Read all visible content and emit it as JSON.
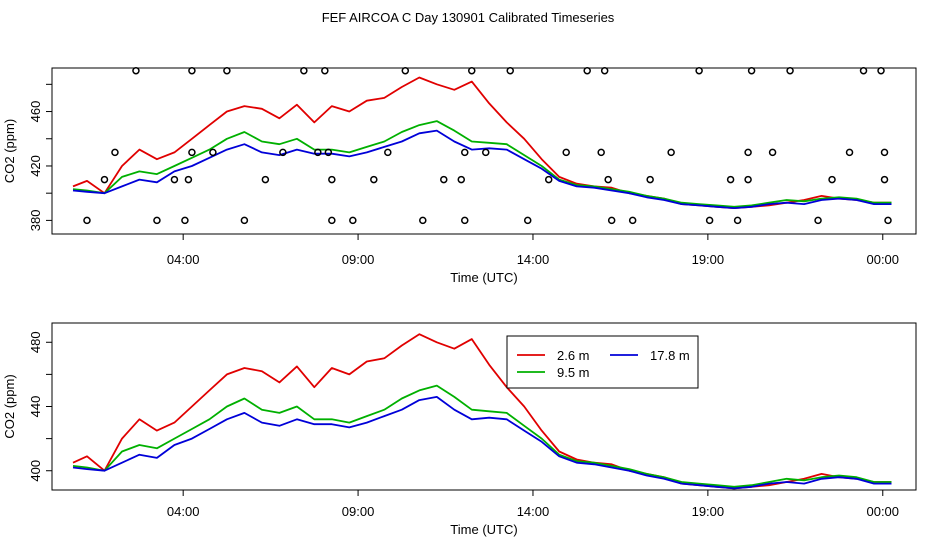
{
  "title": "FEF AIRCOA C  Day 130901  Calibrated Timeseries",
  "colors": {
    "s1": "#e00000",
    "s2": "#00b000",
    "s3": "#0000d8"
  },
  "chart_data": [
    {
      "type": "line",
      "xlabel": "Time (UTC)",
      "ylabel": "CO2 (ppm)",
      "xlim": [
        0,
        24.7
      ],
      "ylim": [
        370,
        492
      ],
      "xticks": [
        3.75,
        8.75,
        13.75,
        18.75,
        23.75
      ],
      "xtick_labels": [
        "04:00",
        "09:00",
        "14:00",
        "19:00",
        "00:00"
      ],
      "yticks": [
        380,
        420,
        460
      ],
      "yticks_minor": [
        400,
        440,
        480
      ],
      "x": [
        0.6,
        1.0,
        1.5,
        2.0,
        2.5,
        3.0,
        3.5,
        4.0,
        4.5,
        5.0,
        5.5,
        6.0,
        6.5,
        7.0,
        7.5,
        8.0,
        8.5,
        9.0,
        9.5,
        10.0,
        10.5,
        11.0,
        11.5,
        12.0,
        12.5,
        13.0,
        13.5,
        14.0,
        14.5,
        15.0,
        15.5,
        16.0,
        16.5,
        17.0,
        17.5,
        18.0,
        18.5,
        19.0,
        19.5,
        20.0,
        20.5,
        21.0,
        21.5,
        22.0,
        22.5,
        23.0,
        23.5,
        24.0
      ],
      "series": [
        {
          "name": "2.6 m",
          "color_key": "s1",
          "values": [
            405,
            409,
            400,
            420,
            432,
            425,
            430,
            440,
            450,
            460,
            464,
            462,
            455,
            465,
            452,
            464,
            460,
            468,
            470,
            478,
            485,
            480,
            476,
            482,
            466,
            452,
            440,
            425,
            412,
            407,
            405,
            404,
            400,
            398,
            396,
            392,
            391,
            390,
            389,
            390,
            391,
            393,
            395,
            398,
            396,
            395,
            393,
            393
          ]
        },
        {
          "name": "9.5 m",
          "color_key": "s2",
          "values": [
            403,
            402,
            400,
            412,
            416,
            414,
            420,
            426,
            432,
            440,
            445,
            438,
            436,
            440,
            432,
            432,
            430,
            434,
            438,
            445,
            450,
            453,
            446,
            438,
            437,
            436,
            428,
            420,
            410,
            406,
            405,
            403,
            401,
            398,
            396,
            393,
            392,
            391,
            390,
            391,
            393,
            395,
            394,
            396,
            397,
            396,
            393,
            393
          ]
        },
        {
          "name": "17.8 m",
          "color_key": "s3",
          "values": [
            402,
            401,
            400,
            405,
            410,
            408,
            416,
            420,
            426,
            432,
            436,
            430,
            428,
            432,
            429,
            429,
            427,
            430,
            434,
            438,
            444,
            446,
            438,
            432,
            433,
            432,
            425,
            418,
            409,
            405,
            404,
            402,
            400,
            397,
            395,
            392,
            391,
            390,
            389,
            390,
            392,
            393,
            392,
            395,
            396,
            395,
            392,
            392
          ]
        }
      ],
      "points": [
        [
          1.0,
          380
        ],
        [
          1.5,
          410
        ],
        [
          1.8,
          430
        ],
        [
          2.4,
          490
        ],
        [
          3.0,
          380
        ],
        [
          3.5,
          410
        ],
        [
          3.8,
          380
        ],
        [
          3.9,
          410
        ],
        [
          4.0,
          430
        ],
        [
          4.0,
          490
        ],
        [
          4.6,
          430
        ],
        [
          5.0,
          490
        ],
        [
          5.5,
          380
        ],
        [
          6.1,
          410
        ],
        [
          6.6,
          430
        ],
        [
          7.2,
          490
        ],
        [
          7.6,
          430
        ],
        [
          7.8,
          490
        ],
        [
          7.9,
          430
        ],
        [
          8.0,
          380
        ],
        [
          8.0,
          410
        ],
        [
          8.6,
          380
        ],
        [
          9.2,
          410
        ],
        [
          9.6,
          430
        ],
        [
          10.1,
          490
        ],
        [
          10.6,
          380
        ],
        [
          11.2,
          410
        ],
        [
          11.7,
          410
        ],
        [
          11.8,
          430
        ],
        [
          11.8,
          380
        ],
        [
          12.0,
          490
        ],
        [
          12.4,
          430
        ],
        [
          13.1,
          490
        ],
        [
          13.6,
          380
        ],
        [
          14.2,
          410
        ],
        [
          14.7,
          430
        ],
        [
          15.3,
          490
        ],
        [
          15.7,
          430
        ],
        [
          15.8,
          490
        ],
        [
          15.9,
          410
        ],
        [
          16.0,
          380
        ],
        [
          16.6,
          380
        ],
        [
          17.1,
          410
        ],
        [
          17.7,
          430
        ],
        [
          18.5,
          490
        ],
        [
          18.8,
          380
        ],
        [
          19.4,
          410
        ],
        [
          19.6,
          380
        ],
        [
          19.9,
          410
        ],
        [
          19.9,
          430
        ],
        [
          20.0,
          490
        ],
        [
          20.6,
          430
        ],
        [
          21.1,
          490
        ],
        [
          21.9,
          380
        ],
        [
          22.3,
          410
        ],
        [
          22.8,
          430
        ],
        [
          23.2,
          490
        ],
        [
          23.7,
          490
        ],
        [
          23.8,
          430
        ],
        [
          23.8,
          410
        ],
        [
          23.9,
          380
        ]
      ]
    },
    {
      "type": "line",
      "xlabel": "Time (UTC)",
      "ylabel": "CO2 (ppm)",
      "xlim": [
        0,
        24.7
      ],
      "ylim": [
        388,
        492
      ],
      "xticks": [
        3.75,
        8.75,
        13.75,
        18.75,
        23.75
      ],
      "xtick_labels": [
        "04:00",
        "09:00",
        "14:00",
        "19:00",
        "00:00"
      ],
      "yticks": [
        400,
        440,
        480
      ],
      "yticks_minor": [
        420,
        460
      ],
      "legend": {
        "position": "top-center",
        "labels": [
          "2.6 m",
          "17.8 m",
          "9.5 m"
        ]
      },
      "x": [
        0.6,
        1.0,
        1.5,
        2.0,
        2.5,
        3.0,
        3.5,
        4.0,
        4.5,
        5.0,
        5.5,
        6.0,
        6.5,
        7.0,
        7.5,
        8.0,
        8.5,
        9.0,
        9.5,
        10.0,
        10.5,
        11.0,
        11.5,
        12.0,
        12.5,
        13.0,
        13.5,
        14.0,
        14.5,
        15.0,
        15.5,
        16.0,
        16.5,
        17.0,
        17.5,
        18.0,
        18.5,
        19.0,
        19.5,
        20.0,
        20.5,
        21.0,
        21.5,
        22.0,
        22.5,
        23.0,
        23.5,
        24.0
      ],
      "series": [
        {
          "name": "2.6 m",
          "color_key": "s1",
          "values": [
            405,
            409,
            400,
            420,
            432,
            425,
            430,
            440,
            450,
            460,
            464,
            462,
            455,
            465,
            452,
            464,
            460,
            468,
            470,
            478,
            485,
            480,
            476,
            482,
            466,
            452,
            440,
            425,
            412,
            407,
            405,
            404,
            400,
            398,
            396,
            392,
            391,
            390,
            389,
            390,
            391,
            393,
            395,
            398,
            396,
            395,
            393,
            393
          ]
        },
        {
          "name": "9.5 m",
          "color_key": "s2",
          "values": [
            403,
            402,
            400,
            412,
            416,
            414,
            420,
            426,
            432,
            440,
            445,
            438,
            436,
            440,
            432,
            432,
            430,
            434,
            438,
            445,
            450,
            453,
            446,
            438,
            437,
            436,
            428,
            420,
            410,
            406,
            405,
            403,
            401,
            398,
            396,
            393,
            392,
            391,
            390,
            391,
            393,
            395,
            394,
            396,
            397,
            396,
            393,
            393
          ]
        },
        {
          "name": "17.8 m",
          "color_key": "s3",
          "values": [
            402,
            401,
            400,
            405,
            410,
            408,
            416,
            420,
            426,
            432,
            436,
            430,
            428,
            432,
            429,
            429,
            427,
            430,
            434,
            438,
            444,
            446,
            438,
            432,
            433,
            432,
            425,
            418,
            409,
            405,
            404,
            402,
            400,
            397,
            395,
            392,
            391,
            390,
            389,
            390,
            392,
            393,
            392,
            395,
            396,
            395,
            392,
            392
          ]
        }
      ]
    }
  ]
}
